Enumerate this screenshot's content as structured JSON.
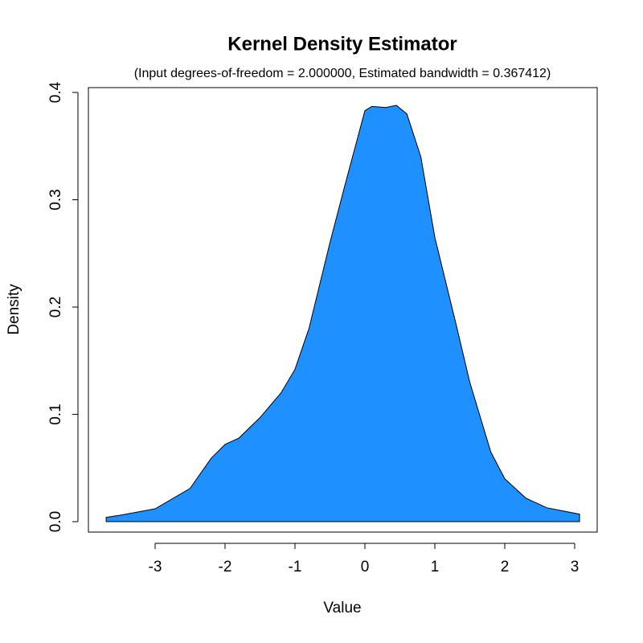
{
  "chart_data": {
    "type": "area",
    "title": "Kernel Density Estimator",
    "subtitle": "(Input degrees-of-freedom = 2.000000, Estimated bandwidth = 0.367412)",
    "x_label": "Value",
    "y_label": "Density",
    "x": [
      -3.7,
      -3.5,
      -3.0,
      -2.5,
      -2.2,
      -2.0,
      -1.8,
      -1.5,
      -1.2,
      -1.0,
      -0.8,
      -0.5,
      -0.3,
      0.0,
      0.1,
      0.3,
      0.45,
      0.6,
      0.8,
      1.0,
      1.3,
      1.5,
      1.8,
      2.0,
      2.3,
      2.6,
      3.07
    ],
    "values": [
      0.004,
      0.006,
      0.012,
      0.031,
      0.059,
      0.072,
      0.078,
      0.097,
      0.12,
      0.142,
      0.18,
      0.26,
      0.31,
      0.383,
      0.387,
      0.386,
      0.388,
      0.38,
      0.34,
      0.265,
      0.185,
      0.13,
      0.065,
      0.04,
      0.022,
      0.013,
      0.007
    ],
    "color": "#1e90ff",
    "xlim": [
      -3.954,
      3.322
    ],
    "ylim": [
      -0.0097,
      0.4045
    ],
    "xticks": [
      -3,
      -2,
      -1,
      0,
      1,
      2,
      3
    ],
    "yticks": [
      {
        "value": 0,
        "label": "0.0"
      },
      0.1,
      0.2,
      0.3,
      0.4
    ]
  }
}
